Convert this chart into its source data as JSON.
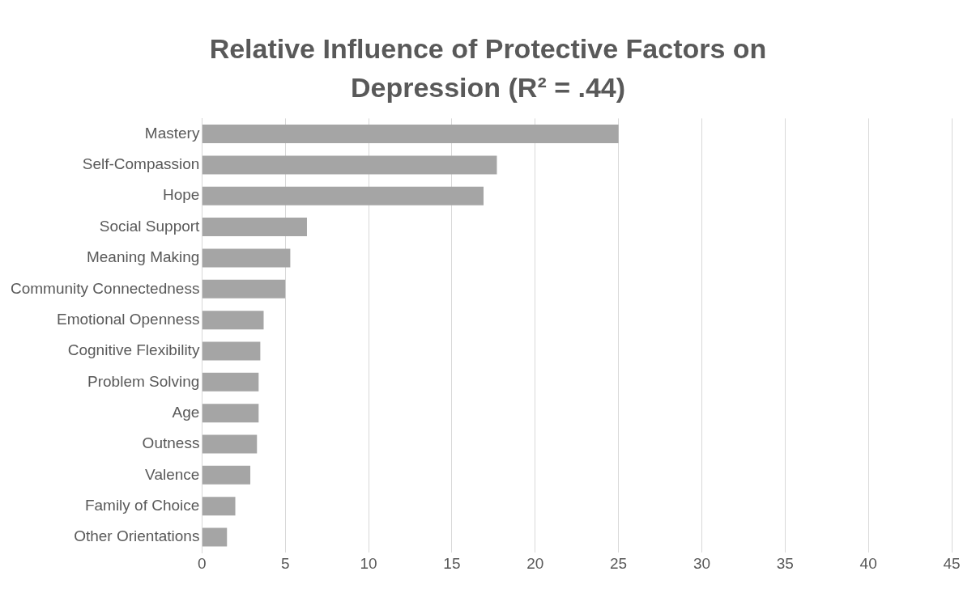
{
  "chart_data": {
    "type": "bar",
    "orientation": "horizontal",
    "title": "Relative Influence of Protective Factors on Depression (R² = .44)",
    "categories": [
      "Mastery",
      "Self-Compassion",
      "Hope",
      "Social Support",
      "Meaning Making",
      "Community Connectedness",
      "Emotional Openness",
      "Cognitive Flexibility",
      "Problem Solving",
      "Age",
      "Outness",
      "Valence",
      "Family of Choice",
      "Other Orientations"
    ],
    "values": [
      25.0,
      17.7,
      16.9,
      6.3,
      5.3,
      5.0,
      3.7,
      3.5,
      3.4,
      3.4,
      3.3,
      2.9,
      2.0,
      1.5
    ],
    "color": "#a5a5a5",
    "xlim": [
      0,
      45
    ],
    "xticks": [
      0,
      5,
      10,
      15,
      20,
      25,
      30,
      35,
      40,
      45
    ],
    "grid": "x",
    "legend": false
  }
}
